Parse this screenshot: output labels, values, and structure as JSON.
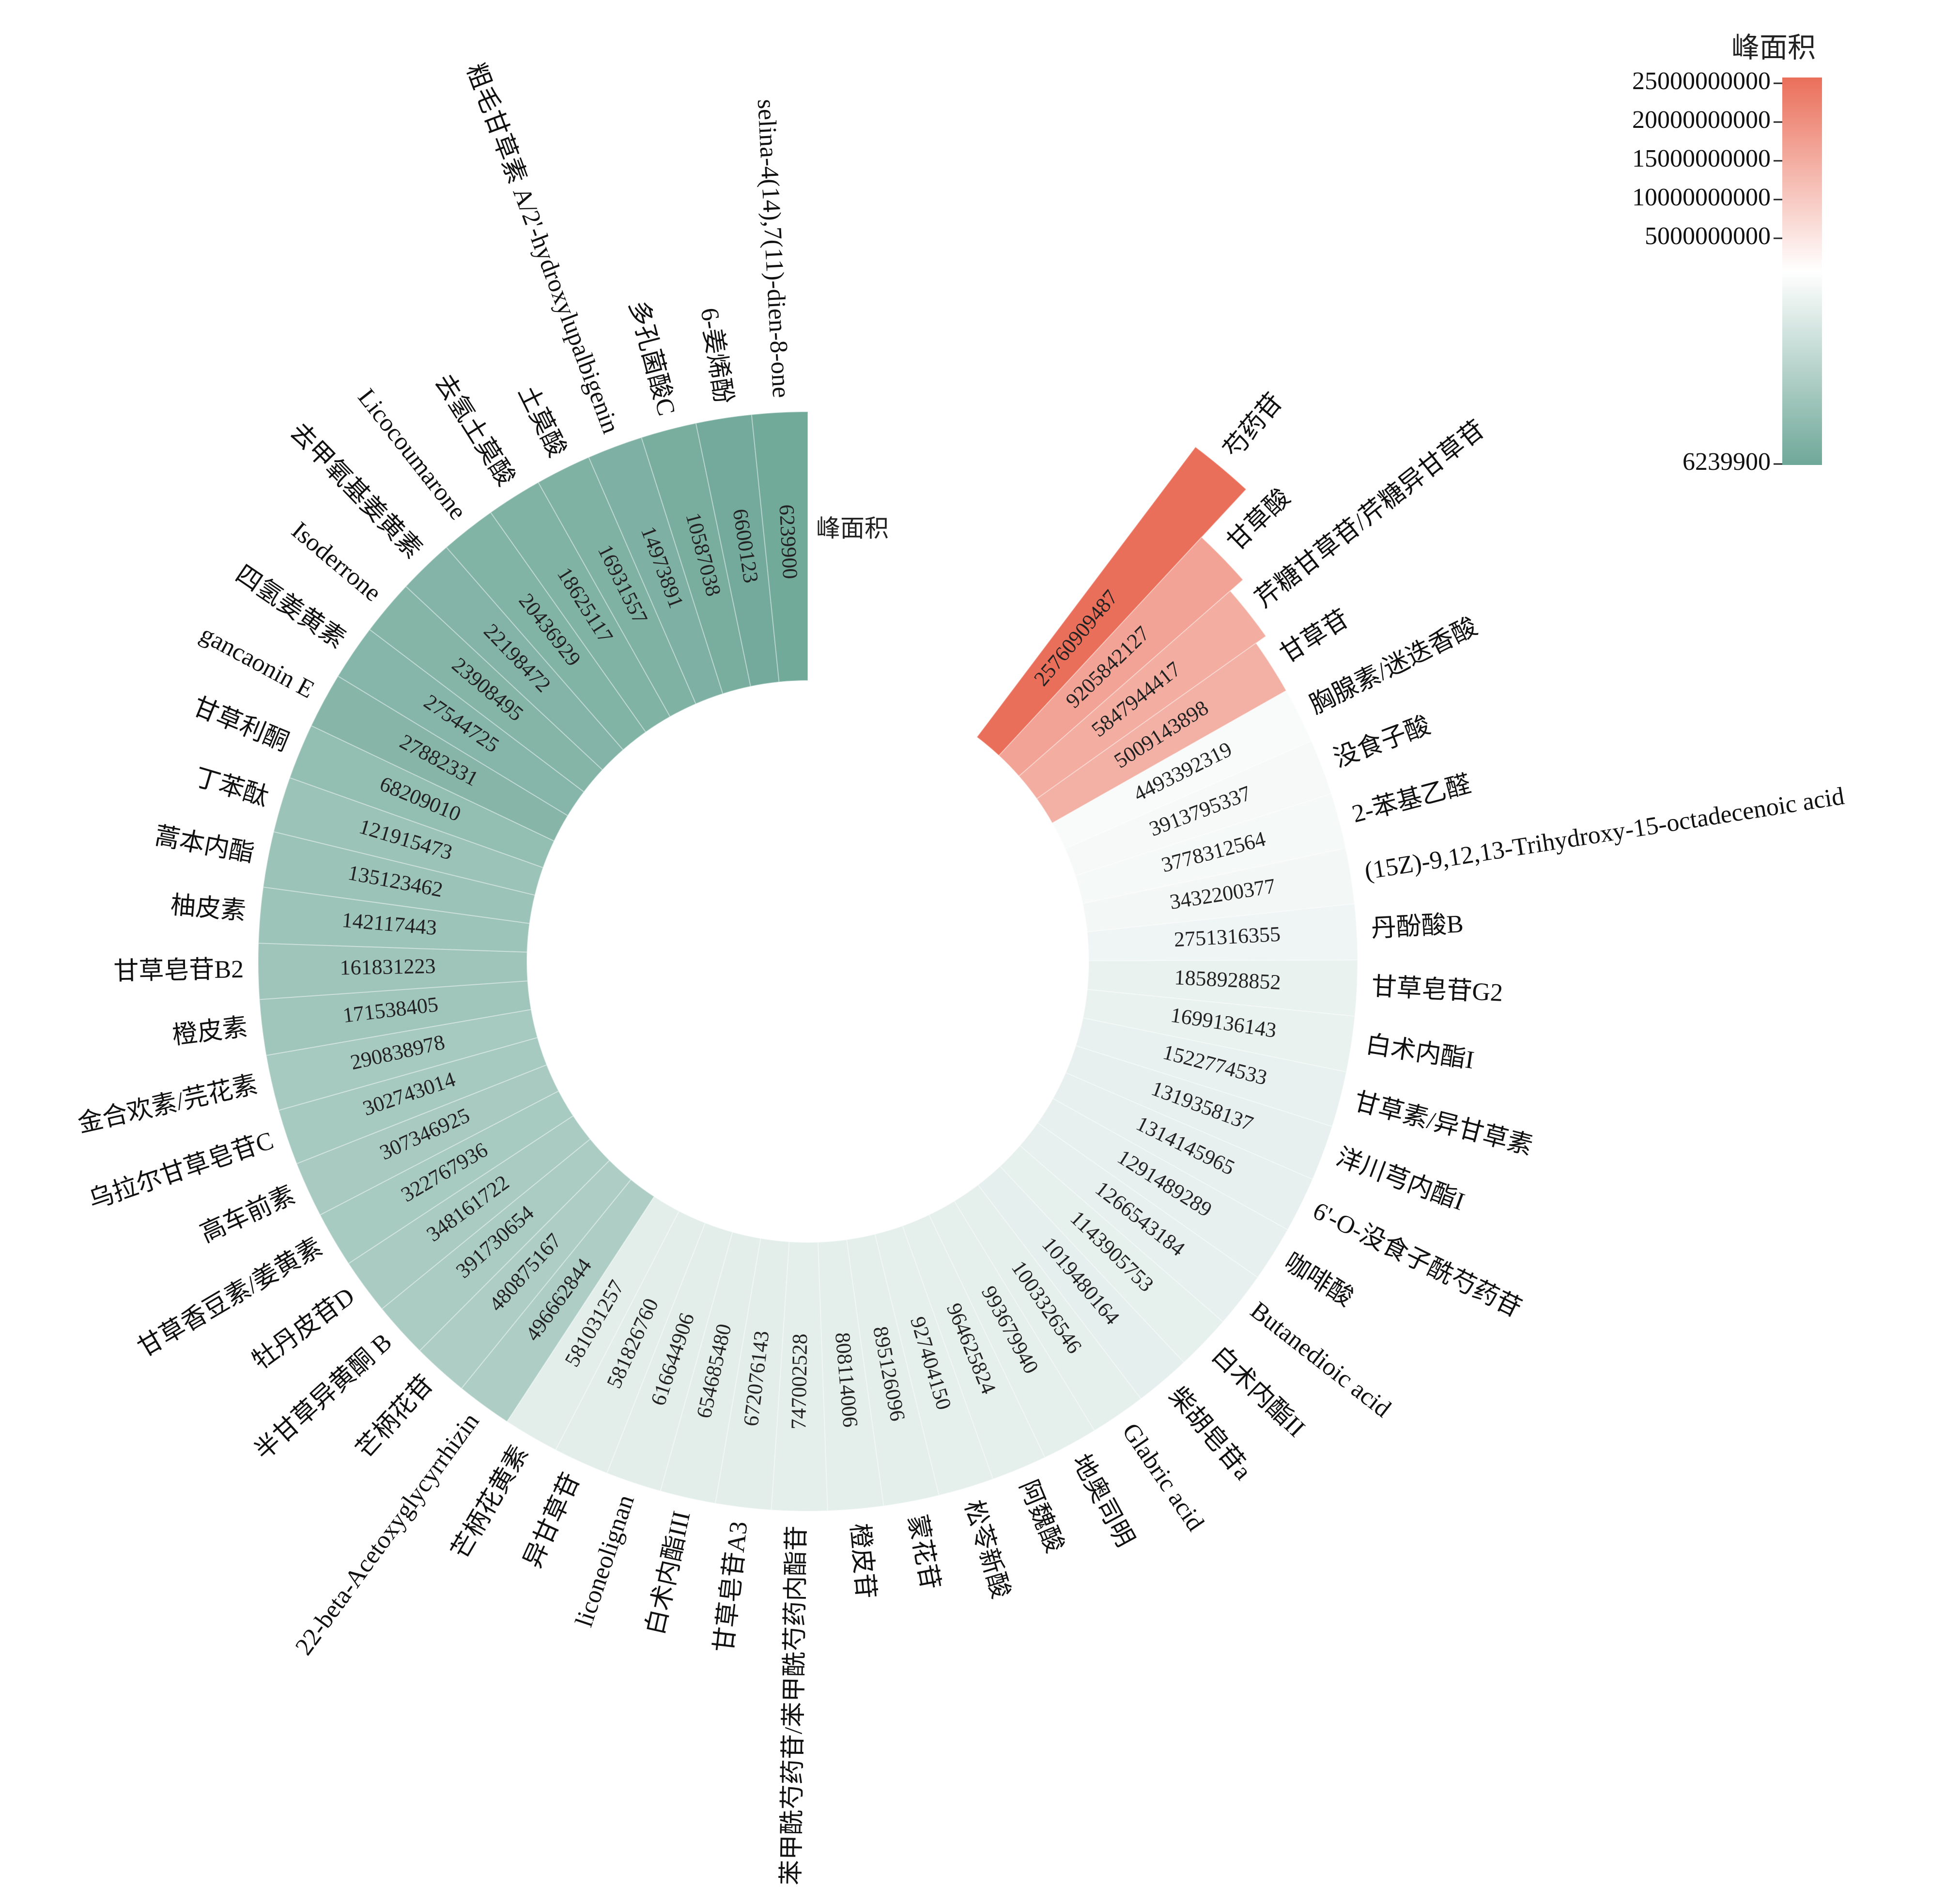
{
  "chart_data": {
    "type": "radial-bar",
    "value_label": "峰面积",
    "legend": {
      "title": "峰面积",
      "ticks": [
        "25000000000",
        "20000000000",
        "15000000000",
        "10000000000",
        "5000000000",
        "6239900"
      ],
      "tick_values": [
        25000000000,
        20000000000,
        15000000000,
        10000000000,
        5000000000,
        6239900
      ],
      "range": [
        6239900,
        25760909487
      ],
      "colors": {
        "high": "#ea6f5a",
        "mid": "#ffffff",
        "low": "#6fa898"
      }
    },
    "categories": [
      "芍药苷",
      "甘草酸",
      "芹糖甘草苷/芹糖异甘草苷",
      "甘草苷",
      "胸腺素/迷迭香酸",
      "没食子酸",
      "2-苯基乙醛",
      "(15Z)-9,12,13-Trihydroxy-15-octadecenoic acid",
      "丹酚酸B",
      "甘草皂苷G2",
      "白术内酯I",
      "甘草素/异甘草素",
      "洋川芎内酯I",
      "6'-O-没食子酰芍药苷",
      "咖啡酸",
      "Butanedioic acid",
      "白术内酯II",
      "柴胡皂苷a",
      "Glabric acid",
      "地奥司明",
      "阿魏酸",
      "松苓新酸",
      "蒙花苷",
      "橙皮苷",
      "苯甲酰芍药苷/苯甲酰芍药内酯苷",
      "甘草皂苷A3",
      "白术内酯III",
      "liconeolignan",
      "异甘草苷",
      "芒柄花黄素",
      "22-beta-Acetoxyglycyrrhizin",
      "芒柄花苷",
      "半甘草异黄酮 B",
      "牡丹皮苷D",
      "甘草香豆素/姜黄素",
      "高车前素",
      "乌拉尔甘草皂苷C",
      "金合欢素/芫花素",
      "橙皮素",
      "甘草皂苷B2",
      "柚皮素",
      "蒿本内酯",
      "丁苯酞",
      "甘草利酮",
      "gancaonin E",
      "四氢姜黄素",
      "Isoderrone",
      "去甲氧基姜黄素",
      "Licocoumarone",
      "去氢土莫酸",
      "土莫酸",
      "粗毛甘草素 A/2'-hydroxylupalbigenin",
      "多孔菌酸C",
      "6-姜烯酚",
      "selina-4(14),7(11)-dien-8-one"
    ],
    "values": [
      25760909487,
      9205842127,
      5847944417,
      5009143898,
      4493392319,
      3913795337,
      3778312564,
      3432200377,
      2751316355,
      1858928852,
      1699136143,
      1522774533,
      1319358137,
      1314145965,
      1291489289,
      1266543184,
      1143905753,
      1019480164,
      1003326546,
      993679940,
      964625824,
      927404150,
      895126096,
      808114006,
      747002528,
      672076143,
      654685480,
      616644906,
      581826760,
      581031257,
      496662844,
      480875167,
      391730654,
      348161722,
      322767936,
      307346925,
      302743014,
      290838978,
      171538405,
      161831223,
      142117443,
      135123462,
      121915473,
      68209010,
      27882331,
      27544725,
      23908495,
      22198472,
      20436929,
      18625117,
      16931557,
      14973891,
      10587038,
      6600123,
      6239900
    ],
    "value_labels": [
      "25760909487",
      "9205842127",
      "5847944417",
      "5009143898",
      "4493392319",
      "3913795337",
      "3778312564",
      "3432200377",
      "2751316355",
      "1858928852",
      "1699136143",
      "1522774533",
      "1319358137",
      "1314145965",
      "1291489289",
      "1266543184",
      "1143905753",
      "1019480164",
      "1003326546",
      "993679940",
      "964625824",
      "927404150",
      "895126096",
      "808114006",
      "747002528",
      "672076143",
      "654685480",
      "616644906",
      "581826760",
      "581031257",
      "496662844",
      "480875167",
      "391730654",
      "348161722",
      "322767936",
      "307346925",
      "302743014",
      "290838978",
      "171538405",
      "161831223",
      "142117443",
      "135123462",
      "121915473",
      "68209010",
      "27882331",
      "27544725",
      "23908495",
      "22198472",
      "20436929",
      "18625117",
      "16931557",
      "14973891",
      "10587038",
      "6600123",
      "6239900"
    ]
  }
}
